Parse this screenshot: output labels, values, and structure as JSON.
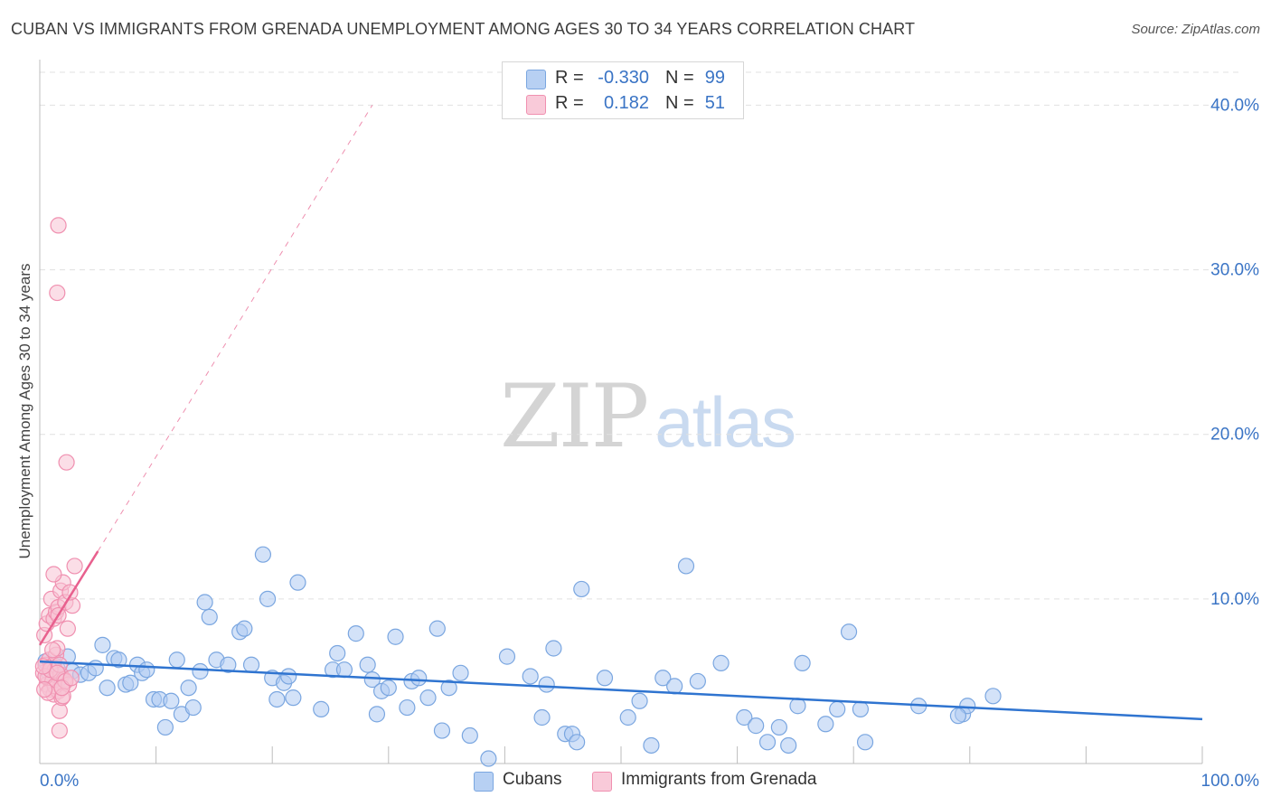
{
  "title": "CUBAN VS IMMIGRANTS FROM GRENADA UNEMPLOYMENT AMONG AGES 30 TO 34 YEARS CORRELATION CHART",
  "source": "Source: ZipAtlas.com",
  "watermark": {
    "zip": "ZIP",
    "atlas": "atlas"
  },
  "legend_top": [
    {
      "r_label": "R =",
      "r_value": "-0.330",
      "n_label": "N =",
      "n_value": "99"
    },
    {
      "r_label": "R =",
      "r_value": "0.182",
      "n_label": "N =",
      "n_value": "51"
    }
  ],
  "legend_bottom": [
    {
      "label": "Cubans"
    },
    {
      "label": "Immigrants from Grenada"
    }
  ],
  "colors": {
    "cubans_fill": "#aecbf2",
    "cubans_stroke": "#7aa6e0",
    "cubans_line": "#2f74d0",
    "grenada_fill": "#f8c3d4",
    "grenada_stroke": "#f090b0",
    "grenada_line": "#e8608e",
    "grid": "#e0e0e0",
    "tick_text": "#3a74c5"
  },
  "chart_data": {
    "type": "scatter",
    "title": "CUBAN VS IMMIGRANTS FROM GRENADA UNEMPLOYMENT AMONG AGES 30 TO 34 YEARS CORRELATION CHART",
    "xlabel": "",
    "ylabel": "Unemployment Among Ages 30 to 34 years",
    "xlim": [
      0,
      100
    ],
    "ylim": [
      0,
      42
    ],
    "x_tick_labels": [
      "0.0%",
      "100.0%"
    ],
    "y_ticks": [
      10,
      20,
      30,
      40
    ],
    "y_tick_labels": [
      "10.0%",
      "20.0%",
      "30.0%",
      "40.0%"
    ],
    "grid": true,
    "series": [
      {
        "name": "Cubans",
        "r": -0.33,
        "n": 99,
        "trend": {
          "x0": 0,
          "y0": 6.2,
          "x1": 100,
          "y1": 2.7
        },
        "points": [
          [
            0.5,
            6.2
          ],
          [
            0.8,
            5.5
          ],
          [
            1.2,
            6.0
          ],
          [
            1.5,
            5.8
          ],
          [
            1.8,
            5.2
          ],
          [
            2.4,
            6.5
          ],
          [
            2.8,
            5.6
          ],
          [
            3.5,
            5.4
          ],
          [
            4.2,
            5.5
          ],
          [
            4.8,
            5.8
          ],
          [
            5.4,
            7.2
          ],
          [
            5.8,
            4.6
          ],
          [
            6.4,
            6.4
          ],
          [
            6.8,
            6.3
          ],
          [
            7.4,
            4.8
          ],
          [
            7.8,
            4.9
          ],
          [
            8.4,
            6.0
          ],
          [
            8.8,
            5.5
          ],
          [
            9.2,
            5.7
          ],
          [
            9.8,
            3.9
          ],
          [
            10.3,
            3.9
          ],
          [
            10.8,
            2.2
          ],
          [
            11.3,
            3.8
          ],
          [
            11.8,
            6.3
          ],
          [
            12.2,
            3.0
          ],
          [
            12.8,
            4.6
          ],
          [
            13.2,
            3.4
          ],
          [
            13.8,
            5.6
          ],
          [
            14.2,
            9.8
          ],
          [
            14.6,
            8.9
          ],
          [
            15.2,
            6.3
          ],
          [
            16.2,
            6.0
          ],
          [
            17.2,
            8.0
          ],
          [
            17.6,
            8.2
          ],
          [
            18.2,
            6.0
          ],
          [
            19.2,
            12.7
          ],
          [
            19.6,
            10.0
          ],
          [
            20.0,
            5.2
          ],
          [
            20.4,
            3.9
          ],
          [
            21.0,
            4.9
          ],
          [
            21.4,
            5.3
          ],
          [
            21.8,
            4.0
          ],
          [
            22.2,
            11.0
          ],
          [
            24.2,
            3.3
          ],
          [
            25.2,
            5.7
          ],
          [
            25.6,
            6.7
          ],
          [
            26.2,
            5.7
          ],
          [
            27.2,
            7.9
          ],
          [
            28.2,
            6.0
          ],
          [
            28.6,
            5.1
          ],
          [
            29.0,
            3.0
          ],
          [
            29.4,
            4.4
          ],
          [
            30.0,
            4.6
          ],
          [
            30.6,
            7.7
          ],
          [
            31.6,
            3.4
          ],
          [
            32.0,
            5.0
          ],
          [
            32.6,
            5.2
          ],
          [
            33.4,
            4.0
          ],
          [
            34.2,
            8.2
          ],
          [
            34.6,
            2.0
          ],
          [
            35.2,
            4.6
          ],
          [
            36.2,
            5.5
          ],
          [
            37.0,
            1.7
          ],
          [
            38.6,
            0.3
          ],
          [
            40.2,
            6.5
          ],
          [
            42.2,
            5.3
          ],
          [
            43.2,
            2.8
          ],
          [
            43.6,
            4.8
          ],
          [
            44.2,
            7.0
          ],
          [
            45.2,
            1.8
          ],
          [
            45.8,
            1.8
          ],
          [
            46.2,
            1.3
          ],
          [
            46.6,
            10.6
          ],
          [
            48.6,
            5.2
          ],
          [
            50.6,
            2.8
          ],
          [
            51.6,
            3.8
          ],
          [
            52.6,
            1.1
          ],
          [
            53.6,
            5.2
          ],
          [
            54.6,
            4.7
          ],
          [
            55.6,
            12.0
          ],
          [
            56.6,
            5.0
          ],
          [
            58.6,
            6.1
          ],
          [
            60.6,
            2.8
          ],
          [
            61.6,
            2.3
          ],
          [
            62.6,
            1.3
          ],
          [
            63.6,
            2.2
          ],
          [
            64.4,
            1.1
          ],
          [
            65.2,
            3.5
          ],
          [
            65.6,
            6.1
          ],
          [
            67.6,
            2.4
          ],
          [
            68.6,
            3.3
          ],
          [
            69.6,
            8.0
          ],
          [
            70.6,
            3.3
          ],
          [
            71.0,
            1.3
          ],
          [
            75.6,
            3.5
          ],
          [
            79.4,
            3.0
          ],
          [
            79.8,
            3.5
          ],
          [
            82.0,
            4.1
          ],
          [
            79.0,
            2.9
          ]
        ]
      },
      {
        "name": "Immigrants from Grenada",
        "r": 0.182,
        "n": 51,
        "trend": {
          "x0": 0,
          "y0": 7.2,
          "x1": 5,
          "y1": 12.9,
          "dashed_to_x": 28.6,
          "dashed_to_y": 40
        },
        "points": [
          [
            0.3,
            5.5
          ],
          [
            0.5,
            6.0
          ],
          [
            0.6,
            4.8
          ],
          [
            0.7,
            5.2
          ],
          [
            0.8,
            6.3
          ],
          [
            0.9,
            4.5
          ],
          [
            1.0,
            5.9
          ],
          [
            1.1,
            5.0
          ],
          [
            1.2,
            4.2
          ],
          [
            1.3,
            5.7
          ],
          [
            1.4,
            6.6
          ],
          [
            1.5,
            7.0
          ],
          [
            1.6,
            4.4
          ],
          [
            1.7,
            3.2
          ],
          [
            1.8,
            5.4
          ],
          [
            1.9,
            4.0
          ],
          [
            0.4,
            7.8
          ],
          [
            0.6,
            8.5
          ],
          [
            0.8,
            9.0
          ],
          [
            1.0,
            10.0
          ],
          [
            1.2,
            8.8
          ],
          [
            1.4,
            9.2
          ],
          [
            1.6,
            9.5
          ],
          [
            1.8,
            10.5
          ],
          [
            2.0,
            11.0
          ],
          [
            2.2,
            9.8
          ],
          [
            1.2,
            11.5
          ],
          [
            1.6,
            9.0
          ],
          [
            2.4,
            8.2
          ],
          [
            2.8,
            9.6
          ],
          [
            3.0,
            12.0
          ],
          [
            2.6,
            10.4
          ],
          [
            0.5,
            5.3
          ],
          [
            0.9,
            5.7
          ],
          [
            1.3,
            4.7
          ],
          [
            1.7,
            6.0
          ],
          [
            2.1,
            5.1
          ],
          [
            2.5,
            4.8
          ],
          [
            0.7,
            4.3
          ],
          [
            1.5,
            5.5
          ],
          [
            2.0,
            4.1
          ],
          [
            0.3,
            5.9
          ],
          [
            1.1,
            6.9
          ],
          [
            2.2,
            5.0
          ],
          [
            1.7,
            2.0
          ],
          [
            1.6,
            32.7
          ],
          [
            1.5,
            28.6
          ],
          [
            2.3,
            18.3
          ],
          [
            0.4,
            4.5
          ],
          [
            1.9,
            4.6
          ],
          [
            2.7,
            5.2
          ]
        ]
      }
    ]
  }
}
